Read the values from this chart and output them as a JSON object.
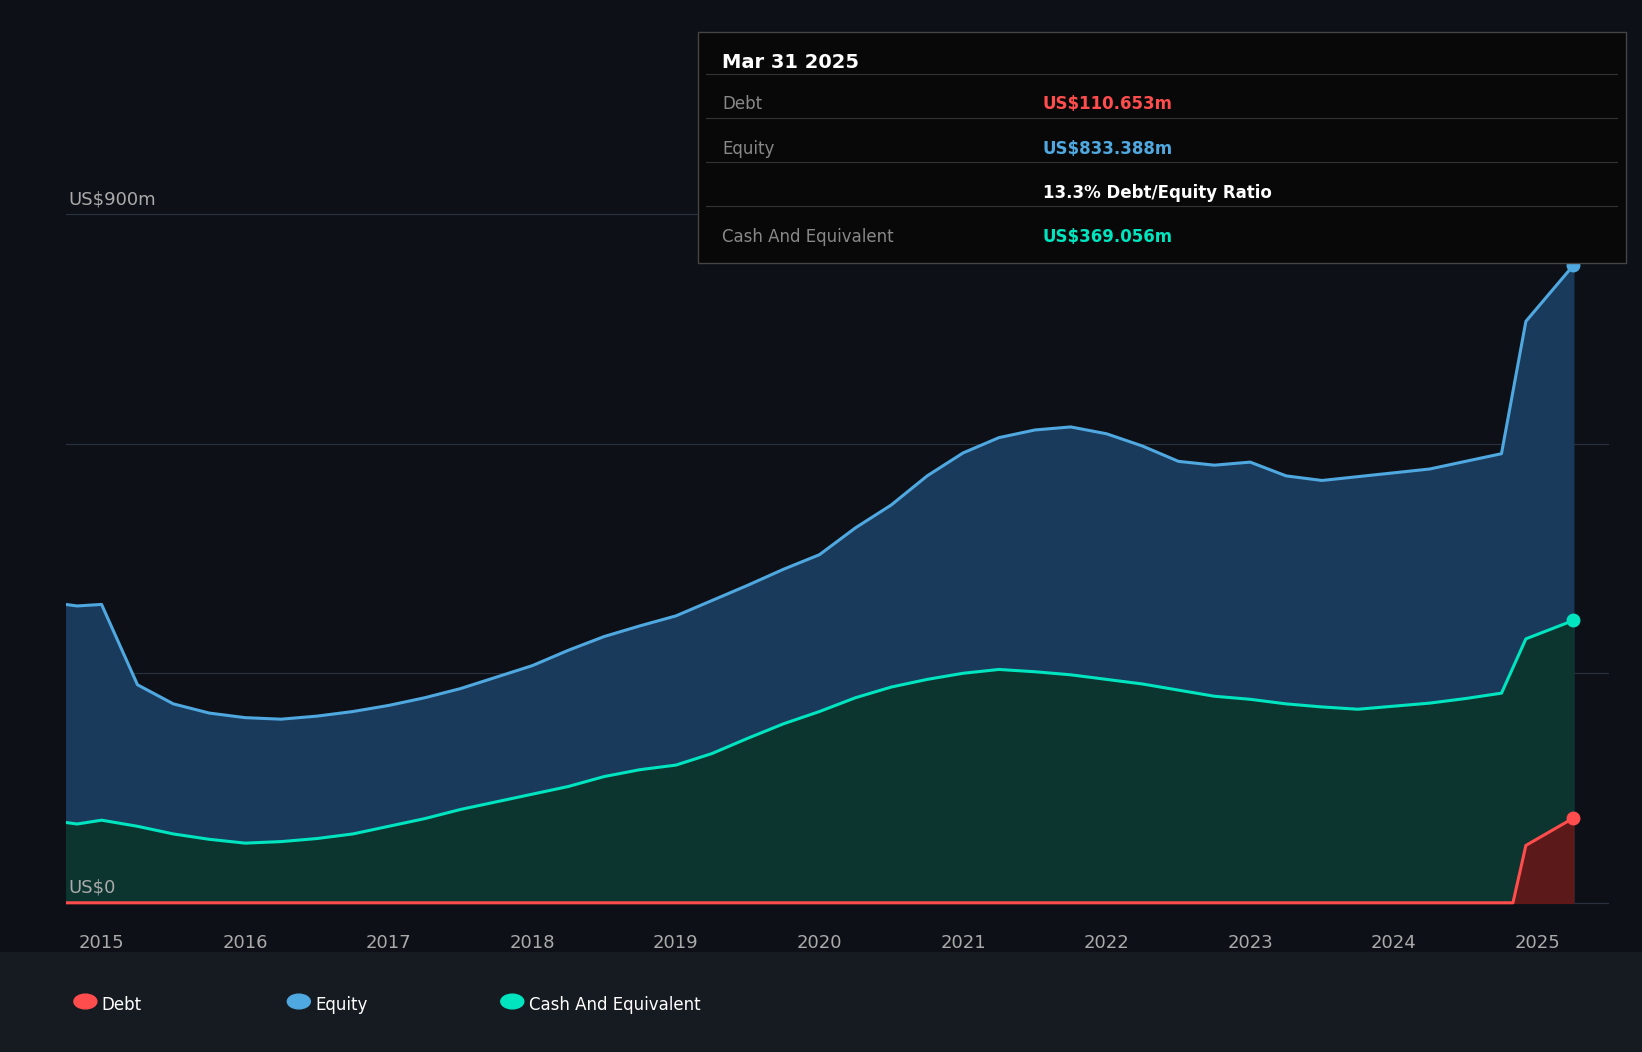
{
  "bg_color": "#0d1117",
  "plot_bg_color": "#0d1117",
  "grid_color": "#2a3040",
  "equity_color": "#4fa8e0",
  "cash_color": "#00e5c0",
  "debt_color": "#ff4d4d",
  "equity_fill": "#1a3a5c",
  "cash_fill": "#0d3530",
  "debt_fill": "#5a1010",
  "ylabel_top": "US$900m",
  "ylabel_bottom": "US$0",
  "x_min": 2014.75,
  "x_max": 2025.5,
  "y_min": -30,
  "y_max": 960,
  "tooltip_date": "Mar 31 2025",
  "tooltip_debt_label": "Debt",
  "tooltip_debt_value": "US$110.653m",
  "tooltip_equity_label": "Equity",
  "tooltip_equity_value": "US$833.388m",
  "tooltip_ratio": "13.3% Debt/Equity Ratio",
  "tooltip_cash_label": "Cash And Equivalent",
  "tooltip_cash_value": "US$369.056m",
  "legend_items": [
    "Debt",
    "Equity",
    "Cash And Equivalent"
  ],
  "legend_colors": [
    "#ff4d4d",
    "#4fa8e0",
    "#00e5c0"
  ],
  "grid_lines": [
    0,
    300,
    600,
    900
  ],
  "equity_data": {
    "dates": [
      2014.75,
      2014.83,
      2015.0,
      2015.25,
      2015.5,
      2015.75,
      2016.0,
      2016.25,
      2016.5,
      2016.75,
      2017.0,
      2017.25,
      2017.5,
      2017.75,
      2018.0,
      2018.25,
      2018.5,
      2018.75,
      2019.0,
      2019.25,
      2019.5,
      2019.75,
      2020.0,
      2020.25,
      2020.5,
      2020.75,
      2021.0,
      2021.25,
      2021.5,
      2021.75,
      2022.0,
      2022.25,
      2022.5,
      2022.75,
      2023.0,
      2023.25,
      2023.5,
      2023.75,
      2024.0,
      2024.25,
      2024.5,
      2024.75,
      2024.92,
      2025.25
    ],
    "values": [
      390,
      388,
      390,
      285,
      260,
      248,
      242,
      240,
      244,
      250,
      258,
      268,
      280,
      295,
      310,
      330,
      348,
      362,
      375,
      395,
      415,
      436,
      455,
      490,
      520,
      558,
      588,
      608,
      618,
      622,
      613,
      597,
      577,
      572,
      576,
      558,
      552,
      557,
      562,
      567,
      577,
      587,
      760,
      833
    ]
  },
  "cash_data": {
    "dates": [
      2014.75,
      2014.83,
      2015.0,
      2015.25,
      2015.5,
      2015.75,
      2016.0,
      2016.25,
      2016.5,
      2016.75,
      2017.0,
      2017.25,
      2017.5,
      2017.75,
      2018.0,
      2018.25,
      2018.5,
      2018.75,
      2019.0,
      2019.25,
      2019.5,
      2019.75,
      2020.0,
      2020.25,
      2020.5,
      2020.75,
      2021.0,
      2021.25,
      2021.5,
      2021.75,
      2022.0,
      2022.25,
      2022.5,
      2022.75,
      2023.0,
      2023.25,
      2023.5,
      2023.75,
      2024.0,
      2024.25,
      2024.5,
      2024.75,
      2024.92,
      2025.25
    ],
    "values": [
      105,
      103,
      108,
      100,
      90,
      83,
      78,
      80,
      84,
      90,
      100,
      110,
      122,
      132,
      142,
      152,
      165,
      174,
      180,
      195,
      215,
      234,
      250,
      268,
      282,
      292,
      300,
      305,
      302,
      298,
      292,
      286,
      278,
      270,
      266,
      260,
      256,
      253,
      257,
      261,
      267,
      274,
      345,
      369
    ]
  },
  "debt_data": {
    "dates": [
      2014.75,
      2015.0,
      2015.5,
      2016.0,
      2016.5,
      2017.0,
      2017.5,
      2018.0,
      2018.5,
      2019.0,
      2019.5,
      2020.0,
      2020.5,
      2021.0,
      2021.5,
      2022.0,
      2022.5,
      2023.0,
      2023.5,
      2024.0,
      2024.5,
      2024.83,
      2024.92,
      2025.25
    ],
    "values": [
      0,
      0,
      0,
      0,
      0,
      0,
      0,
      0,
      0,
      0,
      0,
      0,
      0,
      0,
      0,
      0,
      0,
      0,
      0,
      0,
      0,
      0,
      75,
      110.653
    ]
  }
}
